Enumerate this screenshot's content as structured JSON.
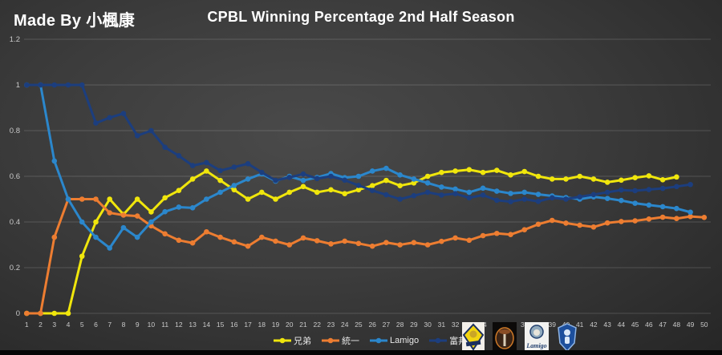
{
  "header": {
    "made_by": "Made By 小楓康",
    "title": "CPBL Winning Percentage 2nd Half Season"
  },
  "chart_data": {
    "type": "line",
    "title": "CPBL Winning Percentage 2nd Half Season",
    "xlabel": "",
    "ylabel": "",
    "grid": true,
    "legend_position": "bottom",
    "ylim": [
      0,
      1.2
    ],
    "y_ticks": [
      0,
      0.2,
      0.4,
      0.6,
      0.8,
      1,
      1.2
    ],
    "x": [
      1,
      2,
      3,
      4,
      5,
      6,
      7,
      8,
      9,
      10,
      11,
      12,
      13,
      14,
      15,
      16,
      17,
      18,
      19,
      20,
      21,
      22,
      23,
      24,
      25,
      26,
      27,
      28,
      29,
      30,
      31,
      32,
      33,
      34,
      35,
      36,
      37,
      38,
      39,
      40,
      41,
      42,
      43,
      44,
      45,
      46,
      47,
      48,
      49,
      50
    ],
    "series": [
      {
        "name": "兄弟",
        "key": "brothers",
        "color": "#F0E60C",
        "values": [
          0,
          0,
          0,
          0,
          0.25,
          0.4,
          0.5,
          0.433,
          0.5,
          0.444,
          0.506,
          0.538,
          0.588,
          0.623,
          0.582,
          0.541,
          0.5,
          0.53,
          0.5,
          0.53,
          0.555,
          0.53,
          0.541,
          0.524,
          0.541,
          0.559,
          0.582,
          0.559,
          0.571,
          0.6,
          0.617,
          0.623,
          0.629,
          0.617,
          0.626,
          0.606,
          0.621,
          0.6,
          0.588,
          0.588,
          0.6,
          0.588,
          0.574,
          0.583,
          0.594,
          0.602,
          0.585,
          0.597
        ]
      },
      {
        "name": "統一",
        "key": "uni-lions",
        "color": "#ED7D31",
        "values": [
          0,
          0,
          0.333,
          0.5,
          0.5,
          0.5,
          0.44,
          0.43,
          0.426,
          0.383,
          0.348,
          0.32,
          0.308,
          0.357,
          0.333,
          0.313,
          0.294,
          0.333,
          0.316,
          0.3,
          0.33,
          0.318,
          0.304,
          0.316,
          0.306,
          0.294,
          0.31,
          0.3,
          0.31,
          0.3,
          0.315,
          0.33,
          0.32,
          0.34,
          0.35,
          0.345,
          0.366,
          0.39,
          0.407,
          0.395,
          0.386,
          0.378,
          0.396,
          0.402,
          0.405,
          0.413,
          0.421,
          0.415,
          0.424,
          0.42
        ]
      },
      {
        "name": "Lamigo",
        "key": "lamigo",
        "color": "#2B87CC",
        "values": [
          1,
          1,
          0.667,
          0.5,
          0.4,
          0.333,
          0.286,
          0.375,
          0.333,
          0.4,
          0.445,
          0.465,
          0.462,
          0.5,
          0.53,
          0.56,
          0.588,
          0.611,
          0.579,
          0.6,
          0.582,
          0.595,
          0.612,
          0.594,
          0.6,
          0.623,
          0.635,
          0.606,
          0.588,
          0.571,
          0.553,
          0.544,
          0.53,
          0.548,
          0.535,
          0.525,
          0.53,
          0.521,
          0.514,
          0.507,
          0.5,
          0.51,
          0.503,
          0.494,
          0.482,
          0.474,
          0.467,
          0.459,
          0.443
        ]
      },
      {
        "name": "富邦",
        "key": "fubon-guardians",
        "color": "#1C3E7E",
        "values": [
          1,
          1,
          1,
          1,
          1,
          0.833,
          0.857,
          0.875,
          0.778,
          0.8,
          0.727,
          0.69,
          0.647,
          0.66,
          0.625,
          0.64,
          0.655,
          0.617,
          0.582,
          0.595,
          0.61,
          0.59,
          0.6,
          0.583,
          0.56,
          0.538,
          0.519,
          0.5,
          0.515,
          0.53,
          0.518,
          0.524,
          0.506,
          0.518,
          0.495,
          0.489,
          0.5,
          0.49,
          0.506,
          0.5,
          0.51,
          0.52,
          0.53,
          0.54,
          0.537,
          0.542,
          0.547,
          0.555,
          0.564
        ]
      }
    ]
  },
  "logos": [
    {
      "key": "brothers",
      "bg": "#f3f0ea",
      "accent": "#f2d410",
      "outline": "#1b2f5e"
    },
    {
      "key": "uni-lions",
      "bg": "#0c0a09",
      "accent": "#8a4d26",
      "outline": "#cf7a28"
    },
    {
      "key": "lamigo",
      "bg": "#f2f2f0",
      "accent": "#8fa9bd",
      "outline": "#23406e"
    },
    {
      "key": "fubon-guardians",
      "bg": "none",
      "accent": "#1d4f9c",
      "outline": "#8fb4e3"
    }
  ],
  "colors": {
    "grid": "rgba(255,255,255,0.16)",
    "tick_label": "#c9c9c9",
    "legend_text": "#e8e8e8"
  }
}
